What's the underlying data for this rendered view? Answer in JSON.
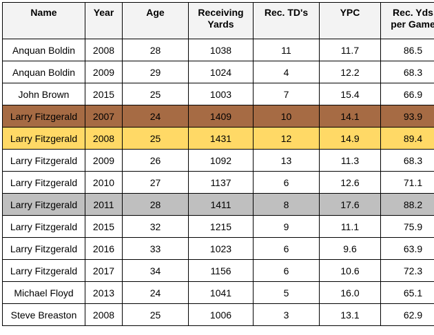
{
  "table": {
    "headers": {
      "name": "Name",
      "year": "Year",
      "age": "Age",
      "yards_1": "Receiving",
      "yards_2": "Yards",
      "td": "Rec. TD's",
      "ypc": "YPC",
      "ypg_1": "Rec. Yds",
      "ypg_2": "per Game"
    },
    "rows": [
      {
        "name": "Anquan Boldin",
        "year": "2008",
        "age": "28",
        "yards": "1038",
        "td": "11",
        "ypc": "11.7",
        "ypg": "86.5"
      },
      {
        "name": "Anquan Boldin",
        "year": "2009",
        "age": "29",
        "yards": "1024",
        "td": "4",
        "ypc": "12.2",
        "ypg": "68.3"
      },
      {
        "name": "John Brown",
        "year": "2015",
        "age": "25",
        "yards": "1003",
        "td": "7",
        "ypc": "15.4",
        "ypg": "66.9"
      },
      {
        "name": "Larry Fitzgerald",
        "year": "2007",
        "age": "24",
        "yards": "1409",
        "td": "10",
        "ypc": "14.1",
        "ypg": "93.9"
      },
      {
        "name": "Larry Fitzgerald",
        "year": "2008",
        "age": "25",
        "yards": "1431",
        "td": "12",
        "ypc": "14.9",
        "ypg": "89.4"
      },
      {
        "name": "Larry Fitzgerald",
        "year": "2009",
        "age": "26",
        "yards": "1092",
        "td": "13",
        "ypc": "11.3",
        "ypg": "68.3"
      },
      {
        "name": "Larry Fitzgerald",
        "year": "2010",
        "age": "27",
        "yards": "1137",
        "td": "6",
        "ypc": "12.6",
        "ypg": "71.1"
      },
      {
        "name": "Larry Fitzgerald",
        "year": "2011",
        "age": "28",
        "yards": "1411",
        "td": "8",
        "ypc": "17.6",
        "ypg": "88.2"
      },
      {
        "name": "Larry Fitzgerald",
        "year": "2015",
        "age": "32",
        "yards": "1215",
        "td": "9",
        "ypc": "11.1",
        "ypg": "75.9"
      },
      {
        "name": "Larry Fitzgerald",
        "year": "2016",
        "age": "33",
        "yards": "1023",
        "td": "6",
        "ypc": "9.6",
        "ypg": "63.9"
      },
      {
        "name": "Larry Fitzgerald",
        "year": "2017",
        "age": "34",
        "yards": "1156",
        "td": "6",
        "ypc": "10.6",
        "ypg": "72.3"
      },
      {
        "name": "Michael Floyd",
        "year": "2013",
        "age": "24",
        "yards": "1041",
        "td": "5",
        "ypc": "16.0",
        "ypg": "65.1"
      },
      {
        "name": "Steve Breaston",
        "year": "2008",
        "age": "25",
        "yards": "1006",
        "td": "3",
        "ypc": "13.1",
        "ypg": "62.9"
      }
    ],
    "highlight_colors": {
      "row_4": "#a66b44",
      "row_5": "#ffd966",
      "row_8": "#bfbfbf",
      "header": "#f3f3f3"
    }
  }
}
